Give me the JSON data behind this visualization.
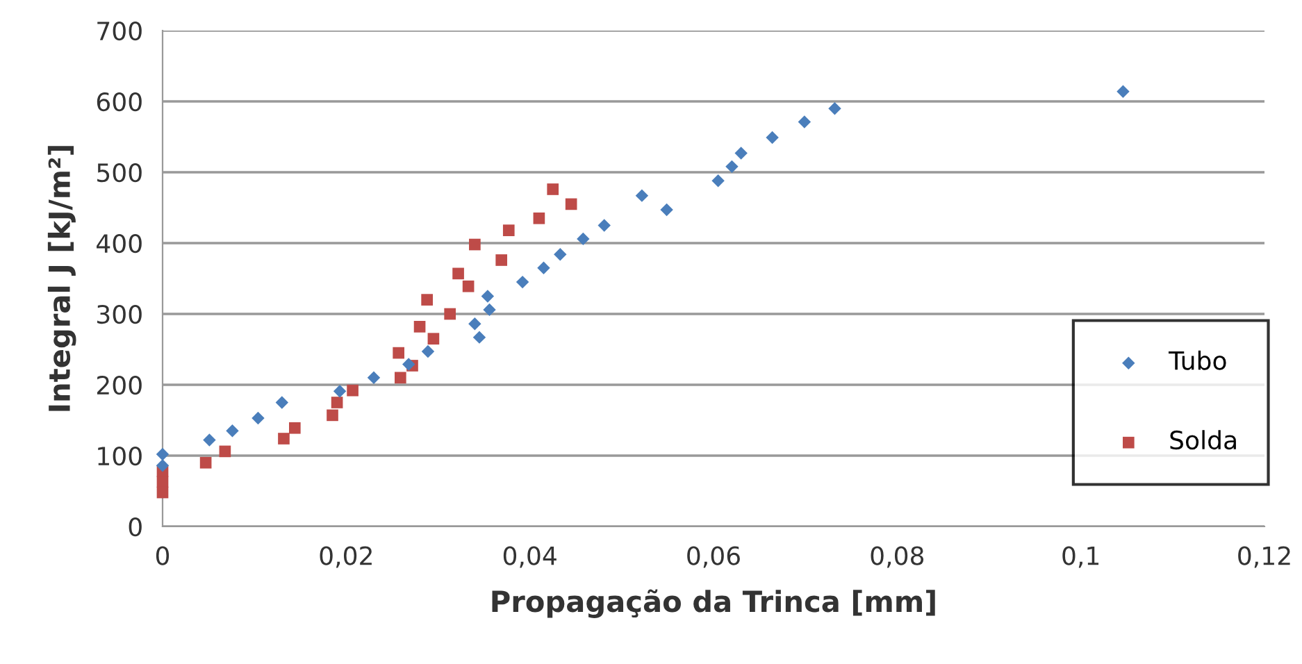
{
  "chart_data": {
    "type": "scatter",
    "xlabel": "Propagação da Trinca [mm]",
    "ylabel": "Integral J [kJ/m²]",
    "xlim": [
      0,
      0.12
    ],
    "xticks": [
      {
        "value": 0,
        "label": "0"
      },
      {
        "value": 0.02,
        "label": "0,02"
      },
      {
        "value": 0.04,
        "label": "0,04"
      },
      {
        "value": 0.06,
        "label": "0,06"
      },
      {
        "value": 0.08,
        "label": "0,08"
      },
      {
        "value": 0.1,
        "label": "0,1"
      },
      {
        "value": 0.12,
        "label": "0,12"
      }
    ],
    "ylim": [
      0,
      700
    ],
    "yticks": [
      0,
      100,
      200,
      300,
      400,
      500,
      600,
      700
    ],
    "grid": "y",
    "legend": "right",
    "series": [
      {
        "name": "Tubo",
        "color": "#4a7ebb",
        "marker": "diamond",
        "x": [
          0,
          0,
          0.0051,
          0.0076,
          0.0104,
          0.013,
          0.0193,
          0.023,
          0.0268,
          0.0289,
          0.034,
          0.0345,
          0.0354,
          0.0356,
          0.0392,
          0.0415,
          0.0433,
          0.0458,
          0.0481,
          0.0522,
          0.0549,
          0.0605,
          0.062,
          0.063,
          0.0664,
          0.0699,
          0.0732,
          0.1046
        ],
        "values": [
          102,
          86,
          122,
          135,
          153,
          175,
          191,
          210,
          229,
          247,
          286,
          267,
          325,
          306,
          345,
          365,
          384,
          406,
          425,
          467,
          447,
          488,
          508,
          527,
          549,
          571,
          590,
          614
        ]
      },
      {
        "name": "Solda",
        "color": "#be4b48",
        "marker": "square",
        "x": [
          0,
          0,
          0,
          0.0047,
          0.0068,
          0.0132,
          0.0144,
          0.0185,
          0.019,
          0.0207,
          0.0259,
          0.0257,
          0.0272,
          0.028,
          0.0295,
          0.0288,
          0.0313,
          0.0322,
          0.0333,
          0.034,
          0.0369,
          0.0377,
          0.041,
          0.0425,
          0.0445
        ],
        "values": [
          78,
          63,
          48,
          90,
          106,
          124,
          139,
          157,
          175,
          192,
          210,
          245,
          227,
          282,
          265,
          320,
          300,
          357,
          339,
          398,
          376,
          418,
          435,
          476,
          455
        ]
      }
    ]
  }
}
